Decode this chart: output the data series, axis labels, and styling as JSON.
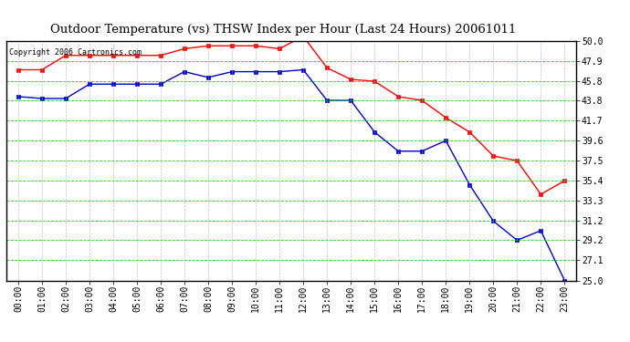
{
  "title": "Outdoor Temperature (vs) THSW Index per Hour (Last 24 Hours) 20061011",
  "copyright_text": "Copyright 2006 Cartronics.com",
  "x_labels": [
    "00:00",
    "01:00",
    "02:00",
    "03:00",
    "04:00",
    "05:00",
    "06:00",
    "07:00",
    "08:00",
    "09:00",
    "10:00",
    "11:00",
    "12:00",
    "13:00",
    "14:00",
    "15:00",
    "16:00",
    "17:00",
    "18:00",
    "19:00",
    "20:00",
    "21:00",
    "22:00",
    "23:00"
  ],
  "red_data": [
    47.0,
    47.0,
    48.5,
    48.5,
    48.5,
    48.5,
    48.5,
    49.2,
    49.5,
    49.5,
    49.5,
    49.2,
    50.5,
    47.2,
    46.0,
    45.8,
    44.2,
    43.8,
    42.0,
    40.5,
    38.0,
    37.5,
    34.0,
    35.4
  ],
  "blue_data": [
    44.2,
    44.0,
    44.0,
    45.5,
    45.5,
    45.5,
    45.5,
    46.8,
    46.2,
    46.8,
    46.8,
    46.8,
    47.0,
    43.8,
    43.8,
    40.5,
    38.5,
    38.5,
    39.6,
    35.0,
    31.2,
    29.2,
    30.2,
    25.0
  ],
  "ylim_min": 25.0,
  "ylim_max": 50.0,
  "y_ticks": [
    25.0,
    27.1,
    29.2,
    31.2,
    33.3,
    35.4,
    37.5,
    39.6,
    41.7,
    43.8,
    45.8,
    47.9,
    50.0
  ],
  "bg_color": "#ffffff",
  "plot_bg_color": "#ffffff",
  "red_color": "#ff0000",
  "blue_color": "#0000cc",
  "grid_color": "#00cc00",
  "grid_vcolor": "#aaaaaa",
  "title_color": "#000000",
  "copyright_color": "#000000",
  "title_fontsize": 9.5,
  "copyright_fontsize": 6.0,
  "tick_fontsize": 7.0,
  "marker_size": 3.0,
  "line_width": 1.0
}
